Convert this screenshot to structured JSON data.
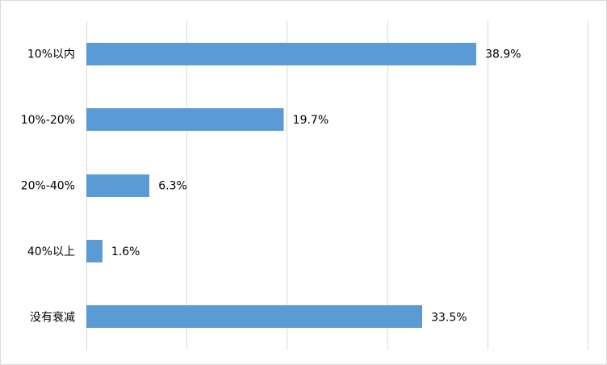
{
  "chart_data": {
    "type": "bar",
    "orientation": "horizontal",
    "title": "",
    "xlabel": "",
    "ylabel": "",
    "categories": [
      "10%以内",
      "10%-20%",
      "20%-40%",
      "40%以上",
      "没有衰减"
    ],
    "values": [
      38.9,
      19.7,
      6.3,
      1.6,
      33.5
    ],
    "value_labels": [
      "38.9%",
      "19.7%",
      "6.3%",
      "1.6%",
      "33.5%"
    ],
    "xlim": [
      0,
      50
    ],
    "grid": "vertical",
    "legend": "none",
    "colors": {
      "bar": "#5b9bd5",
      "grid": "#d9d9d9",
      "border": "#d9d9d9",
      "text": "#000000"
    }
  }
}
